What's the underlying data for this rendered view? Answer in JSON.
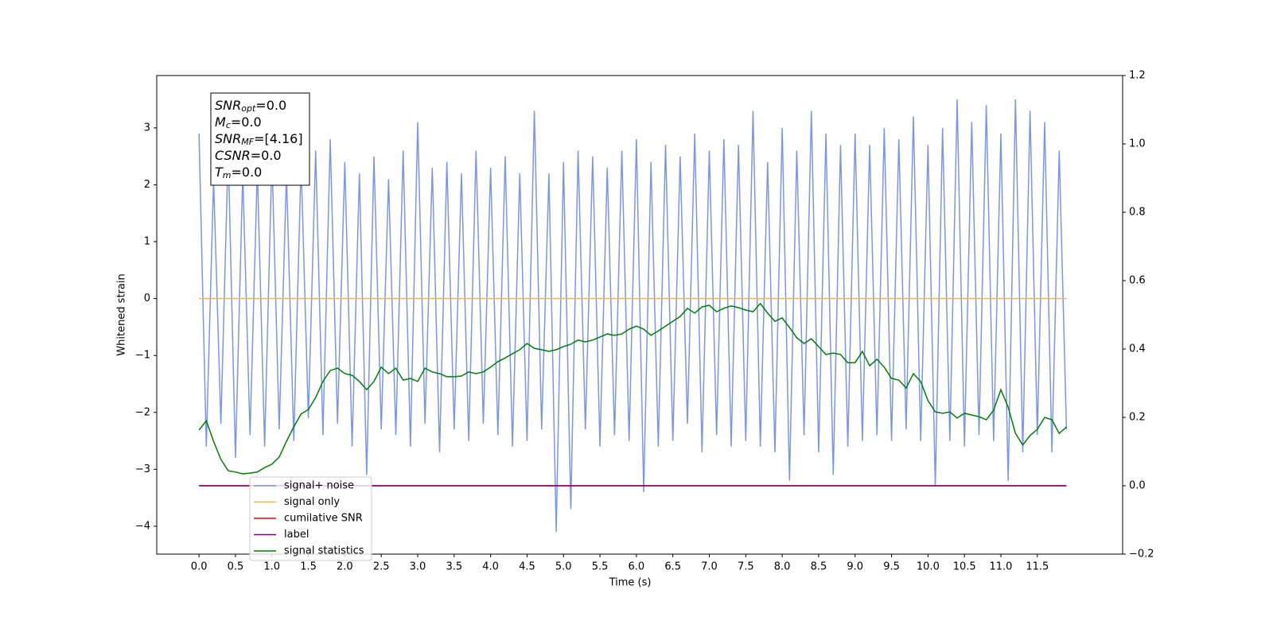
{
  "chart_data": {
    "type": "line",
    "xlabel": "Time (s)",
    "ylabel": "Whitened strain",
    "xlim": [
      -0.58,
      12.67
    ],
    "ylim": [
      -4.49,
      3.92
    ],
    "y2lim": [
      -0.2,
      1.2
    ],
    "xticks": [
      {
        "value": 0,
        "label": "0.0"
      },
      0.5,
      {
        "value": 1,
        "label": "1.0"
      },
      1.5,
      {
        "value": 2,
        "label": "2.0"
      },
      2.5,
      {
        "value": 3,
        "label": "3.0"
      },
      3.5,
      {
        "value": 4,
        "label": "4.0"
      },
      4.5,
      {
        "value": 5,
        "label": "5.0"
      },
      5.5,
      {
        "value": 6,
        "label": "6.0"
      },
      6.5,
      {
        "value": 7,
        "label": "7.0"
      },
      7.5,
      {
        "value": 8,
        "label": "8.0"
      },
      8.5,
      {
        "value": 9,
        "label": "9.0"
      },
      9.5,
      {
        "value": 10,
        "label": "10.0"
      },
      10.5,
      {
        "value": 11,
        "label": "11.0"
      },
      11.5
    ],
    "yticks": [
      {
        "value": -4,
        "label": "−4"
      },
      {
        "value": -3,
        "label": "−3"
      },
      {
        "value": -2,
        "label": "−2"
      },
      {
        "value": -1,
        "label": "−1"
      },
      0,
      1,
      2,
      3
    ],
    "y2ticks": [
      {
        "value": -0.2,
        "label": "−0.2"
      },
      {
        "value": 0,
        "label": "0.0"
      },
      0.2,
      0.4,
      0.6,
      0.8,
      {
        "value": 1,
        "label": "1.0"
      },
      1.2
    ],
    "annotation": [
      {
        "base": "SNR",
        "sub": "opt",
        "rest": "=0.0"
      },
      {
        "base": "M",
        "sub": "c",
        "rest": "=0.0"
      },
      {
        "base": "SNR",
        "sub": "MF",
        "rest": "=[4.16]"
      },
      {
        "base": "CSNR",
        "rest": "=0.0"
      },
      {
        "base": "T",
        "sub": "m",
        "rest": "=0.0"
      }
    ],
    "x": [
      0,
      0.1,
      0.2,
      0.3,
      0.4,
      0.5,
      0.6,
      0.7,
      0.8,
      0.9,
      1,
      1.1,
      1.2,
      1.3,
      1.4,
      1.5,
      1.6,
      1.7,
      1.8,
      1.9,
      2,
      2.1,
      2.2,
      2.3,
      2.4,
      2.5,
      2.6,
      2.7,
      2.8,
      2.9,
      3,
      3.1,
      3.2,
      3.3,
      3.4,
      3.5,
      3.6,
      3.7,
      3.8,
      3.9,
      4,
      4.1,
      4.2,
      4.3,
      4.4,
      4.5,
      4.6,
      4.7,
      4.8,
      4.9,
      5,
      5.1,
      5.2,
      5.3,
      5.4,
      5.5,
      5.6,
      5.7,
      5.8,
      5.9,
      6,
      6.1,
      6.2,
      6.3,
      6.4,
      6.5,
      6.6,
      6.7,
      6.8,
      6.9,
      7,
      7.1,
      7.2,
      7.3,
      7.4,
      7.5,
      7.6,
      7.7,
      7.8,
      7.9,
      8,
      8.1,
      8.2,
      8.3,
      8.4,
      8.5,
      8.6,
      8.7,
      8.8,
      8.9,
      9,
      9.1,
      9.2,
      9.3,
      9.4,
      9.5,
      9.6,
      9.7,
      9.8,
      9.9,
      10,
      10.1,
      10.2,
      10.3,
      10.4,
      10.5,
      10.6,
      10.7,
      10.8,
      10.9,
      11,
      11.1,
      11.2,
      11.3,
      11.4,
      11.5,
      11.6,
      11.7,
      11.8,
      11.9
    ],
    "series": [
      {
        "name": "signal+ noise",
        "color": "#7a96e8",
        "axis": "y",
        "values": [
          2.9,
          -2.6,
          2.1,
          -2.2,
          2.6,
          -2.8,
          2.2,
          -2.4,
          2.3,
          -2.6,
          2.5,
          -2.3,
          2.2,
          -2.5,
          2.4,
          -2.1,
          2.6,
          -2.4,
          2.8,
          -2.2,
          2.4,
          -2.6,
          2.2,
          -3.1,
          2.5,
          -2.3,
          2.1,
          -2.4,
          2.6,
          -2.6,
          3.1,
          -2.2,
          2.3,
          -2.7,
          2.4,
          -2.3,
          2.2,
          -2.5,
          2.6,
          -2.2,
          2.3,
          -2.4,
          2.5,
          -2.6,
          2.2,
          -2.5,
          3.3,
          -2.3,
          2.2,
          -4.1,
          2.4,
          -3.7,
          2.6,
          -2.3,
          2.5,
          -2.6,
          2.3,
          -2.4,
          2.6,
          -2.5,
          2.8,
          -3.4,
          2.4,
          -2.6,
          2.7,
          -2.5,
          2.5,
          -2.2,
          2.9,
          -2.7,
          2.6,
          -2.4,
          2.8,
          -2.6,
          2.7,
          -2.5,
          3.3,
          -2.6,
          2.4,
          -2.7,
          3.0,
          -3.2,
          2.6,
          -2.4,
          3.3,
          -2.7,
          2.9,
          -3.1,
          2.7,
          -2.6,
          2.9,
          -2.5,
          2.7,
          -2.4,
          3.0,
          -2.5,
          2.8,
          -2.3,
          3.2,
          -2.5,
          2.7,
          -3.3,
          3.0,
          -2.5,
          3.5,
          -2.6,
          3.1,
          -2.4,
          3.4,
          -2.5,
          2.9,
          -3.2,
          3.5,
          -2.7,
          3.3,
          -2.4,
          3.1,
          -2.7,
          2.6,
          -2.3
        ]
      },
      {
        "name": "signal only",
        "color": "#ffb347",
        "axis": "y",
        "values": [
          0,
          0,
          0,
          0,
          0,
          0,
          0,
          0,
          0,
          0,
          0,
          0,
          0,
          0,
          0,
          0,
          0,
          0,
          0,
          0,
          0,
          0,
          0,
          0,
          0,
          0,
          0,
          0,
          0,
          0,
          0,
          0,
          0,
          0,
          0,
          0,
          0,
          0,
          0,
          0,
          0,
          0,
          0,
          0,
          0,
          0,
          0,
          0,
          0,
          0,
          0,
          0,
          0,
          0,
          0,
          0,
          0,
          0,
          0,
          0,
          0,
          0,
          0,
          0,
          0,
          0,
          0,
          0,
          0,
          0,
          0,
          0,
          0,
          0,
          0,
          0,
          0,
          0,
          0,
          0,
          0,
          0,
          0,
          0,
          0,
          0,
          0,
          0,
          0,
          0,
          0,
          0,
          0,
          0,
          0,
          0,
          0,
          0,
          0,
          0,
          0,
          0,
          0,
          0,
          0,
          0,
          0,
          0,
          0,
          0,
          0,
          0,
          0,
          0,
          0,
          0,
          0,
          0,
          0,
          0
        ]
      },
      {
        "name": "cumilative SNR",
        "color": "#ff0000",
        "axis": "y2",
        "values": [
          0,
          0,
          0,
          0,
          0,
          0,
          0,
          0,
          0,
          0,
          0,
          0,
          0,
          0,
          0,
          0,
          0,
          0,
          0,
          0,
          0,
          0,
          0,
          0,
          0,
          0,
          0,
          0,
          0,
          0,
          0,
          0,
          0,
          0,
          0,
          0,
          0,
          0,
          0,
          0,
          0,
          0,
          0,
          0,
          0,
          0,
          0,
          0,
          0,
          0,
          0,
          0,
          0,
          0,
          0,
          0,
          0,
          0,
          0,
          0,
          0,
          0,
          0,
          0,
          0,
          0,
          0,
          0,
          0,
          0,
          0,
          0,
          0,
          0,
          0,
          0,
          0,
          0,
          0,
          0,
          0,
          0,
          0,
          0,
          0,
          0,
          0,
          0,
          0,
          0,
          0,
          0,
          0,
          0,
          0,
          0,
          0,
          0,
          0,
          0,
          0,
          0,
          0,
          0,
          0,
          0,
          0,
          0,
          0,
          0,
          0,
          0,
          0,
          0,
          0,
          0,
          0,
          0,
          0,
          0
        ]
      },
      {
        "name": "label",
        "color": "#800080",
        "axis": "y2",
        "values": [
          0,
          0,
          0,
          0,
          0,
          0,
          0,
          0,
          0,
          0,
          0,
          0,
          0,
          0,
          0,
          0,
          0,
          0,
          0,
          0,
          0,
          0,
          0,
          0,
          0,
          0,
          0,
          0,
          0,
          0,
          0,
          0,
          0,
          0,
          0,
          0,
          0,
          0,
          0,
          0,
          0,
          0,
          0,
          0,
          0,
          0,
          0,
          0,
          0,
          0,
          0,
          0,
          0,
          0,
          0,
          0,
          0,
          0,
          0,
          0,
          0,
          0,
          0,
          0,
          0,
          0,
          0,
          0,
          0,
          0,
          0,
          0,
          0,
          0,
          0,
          0,
          0,
          0,
          0,
          0,
          0,
          0,
          0,
          0,
          0,
          0,
          0,
          0,
          0,
          0,
          0,
          0,
          0,
          0,
          0,
          0,
          0,
          0,
          0,
          0,
          0,
          0,
          0,
          0,
          0,
          0,
          0,
          0,
          0,
          0,
          0,
          0,
          0,
          0,
          0,
          0,
          0,
          0,
          0,
          0
        ]
      },
      {
        "name": "signal statistics",
        "color": "#008000",
        "axis": "y2",
        "values": [
          0.163,
          0.19,
          0.13,
          0.077,
          0.044,
          0.04,
          0.035,
          0.037,
          0.04,
          0.053,
          0.063,
          0.084,
          0.13,
          0.172,
          0.21,
          0.223,
          0.258,
          0.305,
          0.337,
          0.344,
          0.328,
          0.323,
          0.305,
          0.281,
          0.305,
          0.347,
          0.328,
          0.344,
          0.309,
          0.314,
          0.305,
          0.344,
          0.333,
          0.328,
          0.319,
          0.319,
          0.321,
          0.333,
          0.328,
          0.333,
          0.347,
          0.363,
          0.374,
          0.386,
          0.398,
          0.416,
          0.402,
          0.398,
          0.393,
          0.398,
          0.407,
          0.414,
          0.426,
          0.421,
          0.426,
          0.435,
          0.444,
          0.44,
          0.444,
          0.458,
          0.467,
          0.458,
          0.44,
          0.453,
          0.467,
          0.481,
          0.495,
          0.519,
          0.505,
          0.523,
          0.528,
          0.509,
          0.519,
          0.526,
          0.521,
          0.514,
          0.509,
          0.533,
          0.505,
          0.481,
          0.491,
          0.463,
          0.433,
          0.416,
          0.43,
          0.407,
          0.384,
          0.388,
          0.384,
          0.36,
          0.36,
          0.393,
          0.351,
          0.37,
          0.347,
          0.314,
          0.309,
          0.286,
          0.328,
          0.305,
          0.249,
          0.216,
          0.212,
          0.216,
          0.198,
          0.212,
          0.207,
          0.202,
          0.193,
          0.221,
          0.281,
          0.23,
          0.153,
          0.119,
          0.147,
          0.165,
          0.2,
          0.193,
          0.153,
          0.172
        ]
      }
    ]
  }
}
